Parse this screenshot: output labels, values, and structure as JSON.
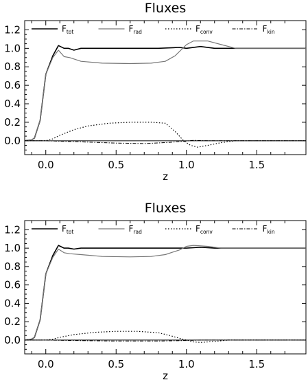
{
  "chart_data": [
    {
      "type": "line",
      "title": "Fluxes",
      "xlabel": "z",
      "ylabel": "",
      "xlim": [
        -0.15,
        1.85
      ],
      "ylim": [
        -0.15,
        1.3
      ],
      "xticks": [
        0.0,
        0.5,
        1.0,
        1.5
      ],
      "xtick_labels": [
        "0.0",
        "0.5",
        "1.0",
        "1.5"
      ],
      "yticks": [
        0.0,
        0.2,
        0.4,
        0.6,
        0.8,
        1.0,
        1.2
      ],
      "ytick_labels": [
        "0.0",
        "0.2",
        "0.4",
        "0.6",
        "0.8",
        "1.0",
        "1.2"
      ],
      "legend_placement": "top",
      "zero_line": true,
      "series": [
        {
          "name": "F",
          "sub": "tot",
          "color": "#000000",
          "dash": "",
          "width": 1.6,
          "points": [
            [
              -0.15,
              0.0
            ],
            [
              -0.1,
              0.01
            ],
            [
              -0.08,
              0.03
            ],
            [
              -0.04,
              0.22
            ],
            [
              0.0,
              0.72
            ],
            [
              0.05,
              0.92
            ],
            [
              0.09,
              1.03
            ],
            [
              0.13,
              1.0
            ],
            [
              0.16,
              1.0
            ],
            [
              0.2,
              0.98
            ],
            [
              0.25,
              1.0
            ],
            [
              0.4,
              1.0
            ],
            [
              0.6,
              1.0
            ],
            [
              0.8,
              1.0
            ],
            [
              0.95,
              1.01
            ],
            [
              1.0,
              1.0
            ],
            [
              1.1,
              1.02
            ],
            [
              1.2,
              1.0
            ],
            [
              1.4,
              1.0
            ],
            [
              1.6,
              1.0
            ],
            [
              1.85,
              1.0
            ]
          ]
        },
        {
          "name": "F",
          "sub": "rad",
          "color": "#777777",
          "dash": "",
          "width": 1.2,
          "points": [
            [
              -0.15,
              0.0
            ],
            [
              -0.1,
              0.01
            ],
            [
              -0.08,
              0.03
            ],
            [
              -0.04,
              0.22
            ],
            [
              0.0,
              0.72
            ],
            [
              0.05,
              0.9
            ],
            [
              0.09,
              0.98
            ],
            [
              0.13,
              0.91
            ],
            [
              0.17,
              0.9
            ],
            [
              0.25,
              0.86
            ],
            [
              0.4,
              0.84
            ],
            [
              0.6,
              0.835
            ],
            [
              0.75,
              0.84
            ],
            [
              0.85,
              0.86
            ],
            [
              0.92,
              0.92
            ],
            [
              1.0,
              1.04
            ],
            [
              1.05,
              1.08
            ],
            [
              1.15,
              1.08
            ],
            [
              1.25,
              1.04
            ],
            [
              1.35,
              1.0
            ],
            [
              1.6,
              1.0
            ],
            [
              1.85,
              1.0
            ]
          ]
        },
        {
          "name": "F",
          "sub": "conv",
          "color": "#000000",
          "dash": "1.5,2.5",
          "width": 1.2,
          "points": [
            [
              -0.15,
              0.0
            ],
            [
              0.0,
              0.0
            ],
            [
              0.05,
              0.02
            ],
            [
              0.1,
              0.06
            ],
            [
              0.2,
              0.12
            ],
            [
              0.3,
              0.16
            ],
            [
              0.45,
              0.19
            ],
            [
              0.6,
              0.2
            ],
            [
              0.75,
              0.2
            ],
            [
              0.85,
              0.19
            ],
            [
              0.92,
              0.1
            ],
            [
              0.98,
              0.0
            ],
            [
              1.03,
              -0.05
            ],
            [
              1.08,
              -0.07
            ],
            [
              1.15,
              -0.05
            ],
            [
              1.25,
              -0.02
            ],
            [
              1.35,
              0.0
            ],
            [
              1.85,
              0.0
            ]
          ]
        },
        {
          "name": "F",
          "sub": "kin",
          "color": "#000000",
          "dash": "5,2,1.5,2",
          "width": 1.0,
          "points": [
            [
              -0.15,
              0.0
            ],
            [
              0.0,
              0.0
            ],
            [
              0.1,
              -0.005
            ],
            [
              0.3,
              -0.015
            ],
            [
              0.5,
              -0.025
            ],
            [
              0.7,
              -0.03
            ],
            [
              0.85,
              -0.02
            ],
            [
              0.95,
              -0.01
            ],
            [
              1.05,
              0.005
            ],
            [
              1.15,
              0.0
            ],
            [
              1.85,
              0.0
            ]
          ]
        }
      ]
    },
    {
      "type": "line",
      "title": "Fluxes",
      "xlabel": "z",
      "ylabel": "",
      "xlim": [
        -0.15,
        1.85
      ],
      "ylim": [
        -0.15,
        1.3
      ],
      "xticks": [
        0.0,
        0.5,
        1.0,
        1.5
      ],
      "xtick_labels": [
        "0.0",
        "0.5",
        "1.0",
        "1.5"
      ],
      "yticks": [
        0.0,
        0.2,
        0.4,
        0.6,
        0.8,
        1.0,
        1.2
      ],
      "ytick_labels": [
        "0.0",
        "0.2",
        "0.4",
        "0.6",
        "0.8",
        "1.0",
        "1.2"
      ],
      "legend_placement": "top",
      "zero_line": true,
      "series": [
        {
          "name": "F",
          "sub": "tot",
          "color": "#000000",
          "dash": "",
          "width": 1.6,
          "points": [
            [
              -0.15,
              0.0
            ],
            [
              -0.1,
              0.01
            ],
            [
              -0.08,
              0.03
            ],
            [
              -0.04,
              0.22
            ],
            [
              0.0,
              0.72
            ],
            [
              0.05,
              0.92
            ],
            [
              0.09,
              1.03
            ],
            [
              0.13,
              1.0
            ],
            [
              0.16,
              1.0
            ],
            [
              0.2,
              0.99
            ],
            [
              0.25,
              1.0
            ],
            [
              0.4,
              1.0
            ],
            [
              0.6,
              1.0
            ],
            [
              0.8,
              1.0
            ],
            [
              1.0,
              1.0
            ],
            [
              1.1,
              1.01
            ],
            [
              1.2,
              1.0
            ],
            [
              1.5,
              1.0
            ],
            [
              1.85,
              1.0
            ]
          ]
        },
        {
          "name": "F",
          "sub": "rad",
          "color": "#777777",
          "dash": "",
          "width": 1.2,
          "points": [
            [
              -0.15,
              0.0
            ],
            [
              -0.1,
              0.01
            ],
            [
              -0.08,
              0.03
            ],
            [
              -0.04,
              0.22
            ],
            [
              0.0,
              0.72
            ],
            [
              0.05,
              0.9
            ],
            [
              0.09,
              0.99
            ],
            [
              0.13,
              0.95
            ],
            [
              0.17,
              0.94
            ],
            [
              0.25,
              0.93
            ],
            [
              0.4,
              0.91
            ],
            [
              0.6,
              0.905
            ],
            [
              0.75,
              0.91
            ],
            [
              0.85,
              0.93
            ],
            [
              0.95,
              0.98
            ],
            [
              1.0,
              1.02
            ],
            [
              1.05,
              1.03
            ],
            [
              1.15,
              1.02
            ],
            [
              1.25,
              1.0
            ],
            [
              1.5,
              1.0
            ],
            [
              1.85,
              1.0
            ]
          ]
        },
        {
          "name": "F",
          "sub": "conv",
          "color": "#000000",
          "dash": "1.5,2.5",
          "width": 1.2,
          "points": [
            [
              -0.15,
              0.0
            ],
            [
              0.0,
              0.0
            ],
            [
              0.05,
              0.01
            ],
            [
              0.1,
              0.03
            ],
            [
              0.2,
              0.06
            ],
            [
              0.35,
              0.085
            ],
            [
              0.5,
              0.095
            ],
            [
              0.65,
              0.095
            ],
            [
              0.8,
              0.08
            ],
            [
              0.88,
              0.05
            ],
            [
              0.95,
              0.02
            ],
            [
              1.0,
              0.0
            ],
            [
              1.05,
              -0.02
            ],
            [
              1.1,
              -0.025
            ],
            [
              1.2,
              -0.015
            ],
            [
              1.3,
              0.0
            ],
            [
              1.85,
              0.0
            ]
          ]
        },
        {
          "name": "F",
          "sub": "kin",
          "color": "#000000",
          "dash": "5,2,1.5,2",
          "width": 1.0,
          "points": [
            [
              -0.15,
              0.0
            ],
            [
              0.0,
              0.0
            ],
            [
              0.2,
              -0.005
            ],
            [
              0.5,
              -0.01
            ],
            [
              0.8,
              -0.01
            ],
            [
              1.0,
              -0.005
            ],
            [
              1.1,
              0.0
            ],
            [
              1.85,
              0.0
            ]
          ]
        }
      ]
    }
  ]
}
